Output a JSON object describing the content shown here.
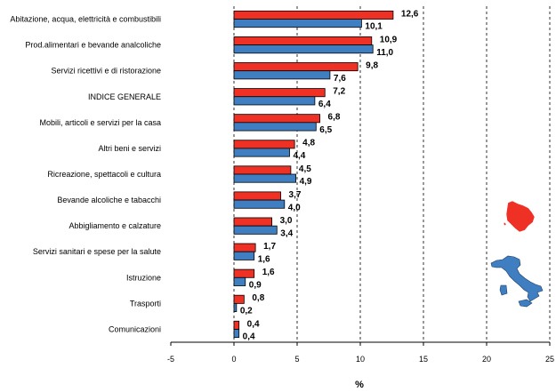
{
  "chart_data": {
    "type": "bar",
    "orientation": "horizontal",
    "categories": [
      "Abitazione, acqua, elettricità e combustibili",
      "Prod.alimentari e bevande analcoliche",
      "Servizi ricettivi e di ristorazione",
      "INDICE GENERALE",
      "Mobili, articoli e servizi per la casa",
      "Altri beni e servizi",
      "Ricreazione, spettacoli e cultura",
      "Bevande alcoliche e tabacchi",
      "Abbigliamento e calzature",
      "Servizi sanitari e spese per la salute",
      "Istruzione",
      "Trasporti",
      "Comunicazioni"
    ],
    "series": [
      {
        "color": "#ee3124",
        "values": [
          12.6,
          10.9,
          9.8,
          7.2,
          6.8,
          4.8,
          4.5,
          3.7,
          3.0,
          1.7,
          1.6,
          0.8,
          0.4
        ],
        "labels": [
          "12,6",
          "10,9",
          "9,8",
          "7,2",
          "6,8",
          "4,8",
          "4,5",
          "3,7",
          "3,0",
          "1,7",
          "1,6",
          "0,8",
          "0,4"
        ]
      },
      {
        "color": "#3f7fc1",
        "values": [
          10.1,
          11.0,
          7.6,
          6.4,
          6.5,
          4.4,
          4.9,
          4.0,
          3.4,
          1.6,
          0.9,
          0.2,
          0.4
        ],
        "labels": [
          "10,1",
          "11,0",
          "7,6",
          "6,4",
          "6,5",
          "4,4",
          "4,9",
          "4,0",
          "3,4",
          "1,6",
          "0,9",
          "0,2",
          "0,4"
        ]
      }
    ],
    "xlim": [
      -5,
      25
    ],
    "xticks": [
      -5,
      0,
      5,
      10,
      15,
      20,
      25
    ],
    "xtick_labels": [
      "-5",
      "0",
      "5",
      "10",
      "15",
      "20",
      "25"
    ],
    "xlabel": "%",
    "grid": "vertical-dashed",
    "legend": [
      {
        "icon": "tuscany-map-icon",
        "color": "#ee3124"
      },
      {
        "icon": "italy-map-icon",
        "color": "#3f7fc1"
      }
    ]
  }
}
